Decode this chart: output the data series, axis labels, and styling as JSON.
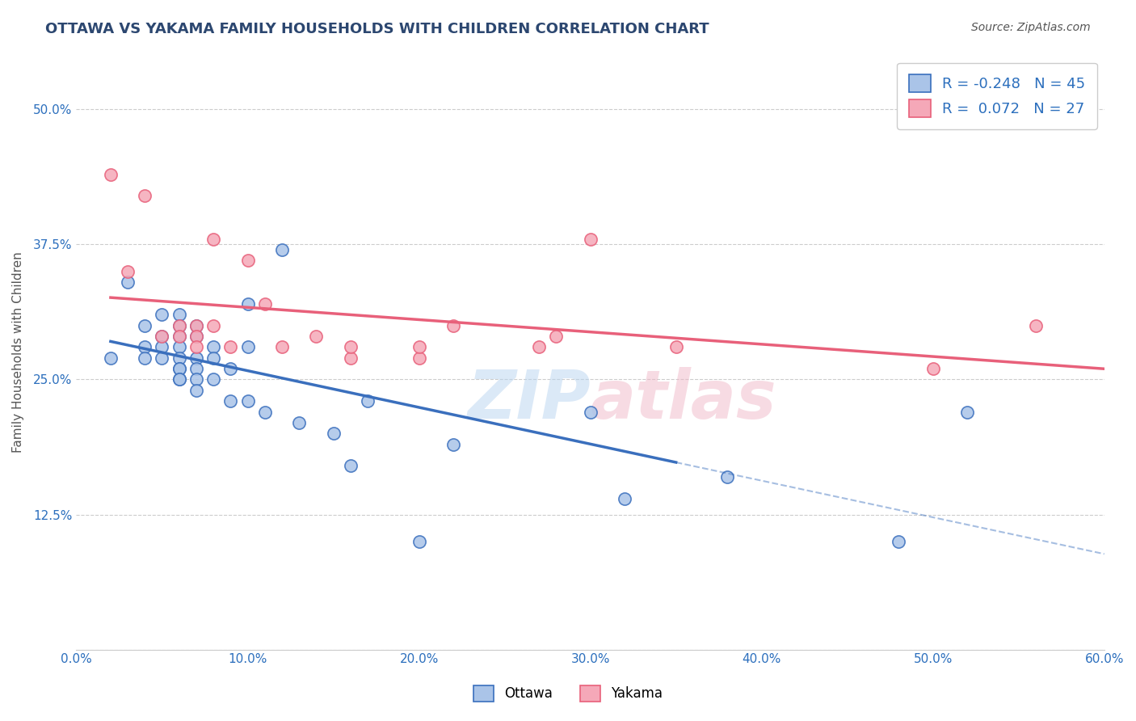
{
  "title": "OTTAWA VS YAKAMA FAMILY HOUSEHOLDS WITH CHILDREN CORRELATION CHART",
  "source": "Source: ZipAtlas.com",
  "xlabel": "",
  "ylabel": "Family Households with Children",
  "xlim": [
    0,
    0.6
  ],
  "ylim": [
    0,
    0.55
  ],
  "xticks": [
    0.0,
    0.1,
    0.2,
    0.3,
    0.4,
    0.5,
    0.6
  ],
  "xticklabels": [
    "0.0%",
    "10.0%",
    "20.0%",
    "30.0%",
    "40.0%",
    "50.0%",
    "60.0%"
  ],
  "yticks": [
    0.0,
    0.125,
    0.25,
    0.375,
    0.5
  ],
  "yticklabels": [
    "",
    "12.5%",
    "25.0%",
    "37.5%",
    "50.0%"
  ],
  "legend_labels": [
    "Ottawa",
    "Yakama"
  ],
  "legend_r": [
    "-0.248",
    "0.072"
  ],
  "legend_n": [
    "45",
    "27"
  ],
  "background_color": "#ffffff",
  "grid_color": "#cccccc",
  "ottawa_color": "#aac4e8",
  "yakama_color": "#f5a8b8",
  "ottawa_line_color": "#3a6fbd",
  "yakama_line_color": "#e8607a",
  "ottawa_scatter": {
    "x": [
      0.02,
      0.03,
      0.04,
      0.04,
      0.04,
      0.05,
      0.05,
      0.05,
      0.05,
      0.06,
      0.06,
      0.06,
      0.06,
      0.06,
      0.06,
      0.06,
      0.06,
      0.06,
      0.07,
      0.07,
      0.07,
      0.07,
      0.07,
      0.07,
      0.08,
      0.08,
      0.08,
      0.09,
      0.09,
      0.1,
      0.1,
      0.1,
      0.11,
      0.12,
      0.13,
      0.15,
      0.16,
      0.17,
      0.2,
      0.22,
      0.3,
      0.32,
      0.38,
      0.48,
      0.52
    ],
    "y": [
      0.27,
      0.34,
      0.3,
      0.28,
      0.27,
      0.31,
      0.29,
      0.28,
      0.27,
      0.31,
      0.3,
      0.29,
      0.28,
      0.27,
      0.26,
      0.26,
      0.25,
      0.25,
      0.3,
      0.29,
      0.27,
      0.26,
      0.25,
      0.24,
      0.28,
      0.27,
      0.25,
      0.26,
      0.23,
      0.32,
      0.28,
      0.23,
      0.22,
      0.37,
      0.21,
      0.2,
      0.17,
      0.23,
      0.1,
      0.19,
      0.22,
      0.14,
      0.16,
      0.1,
      0.22
    ]
  },
  "yakama_scatter": {
    "x": [
      0.02,
      0.03,
      0.04,
      0.05,
      0.06,
      0.06,
      0.07,
      0.07,
      0.07,
      0.08,
      0.08,
      0.09,
      0.1,
      0.11,
      0.12,
      0.14,
      0.16,
      0.16,
      0.2,
      0.2,
      0.22,
      0.27,
      0.28,
      0.3,
      0.35,
      0.5,
      0.56
    ],
    "y": [
      0.44,
      0.35,
      0.42,
      0.29,
      0.3,
      0.29,
      0.3,
      0.29,
      0.28,
      0.38,
      0.3,
      0.28,
      0.36,
      0.32,
      0.28,
      0.29,
      0.27,
      0.28,
      0.27,
      0.28,
      0.3,
      0.28,
      0.29,
      0.38,
      0.28,
      0.26,
      0.3
    ]
  },
  "title_fontsize": 13,
  "axis_label_fontsize": 11,
  "tick_fontsize": 11,
  "legend_fontsize": 13,
  "marker_size": 120,
  "title_color": "#2c4770",
  "axis_label_color": "#555555",
  "tick_color": "#2c6fbd",
  "legend_r_color": "#2c6fbd",
  "source_fontsize": 10,
  "source_color": "#555555"
}
